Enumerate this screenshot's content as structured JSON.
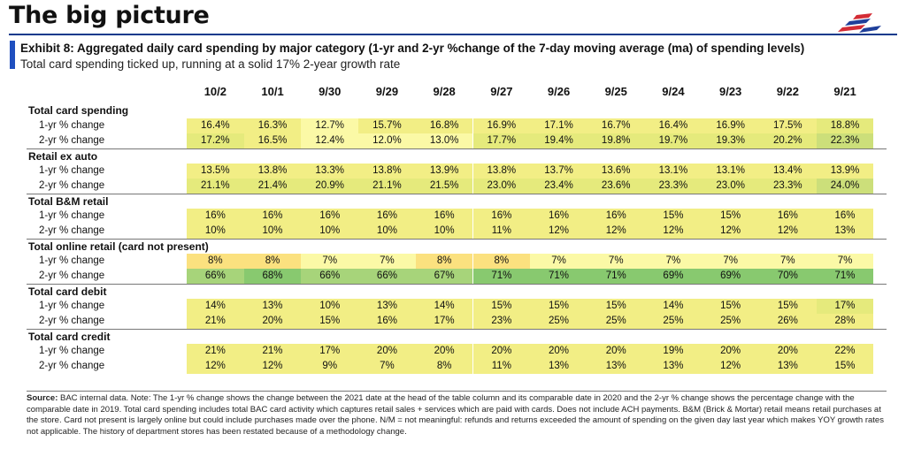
{
  "page_title": "The big picture",
  "exhibit": {
    "title": "Exhibit 8: Aggregated daily card spending by major category (1-yr and 2-yr %change of the 7-day moving average (ma) of spending levels)",
    "subtitle": "Total card spending ticked up, running at a solid 17% 2-year growth rate"
  },
  "columns": [
    "10/2",
    "10/1",
    "9/30",
    "9/29",
    "9/28",
    "9/27",
    "9/26",
    "9/25",
    "9/24",
    "9/23",
    "9/22",
    "9/21"
  ],
  "sections": [
    {
      "title": "Total card spending",
      "rows": [
        {
          "label": "1-yr % change",
          "values": [
            "16.4%",
            "16.3%",
            "12.7%",
            "15.7%",
            "16.8%",
            "16.9%",
            "17.1%",
            "16.7%",
            "16.4%",
            "16.9%",
            "17.5%",
            "18.8%"
          ]
        },
        {
          "label": "2-yr % change",
          "values": [
            "17.2%",
            "16.5%",
            "12.4%",
            "12.0%",
            "13.0%",
            "17.7%",
            "19.4%",
            "19.8%",
            "19.7%",
            "19.3%",
            "20.2%",
            "22.3%"
          ]
        }
      ]
    },
    {
      "title": "Retail ex auto",
      "rows": [
        {
          "label": "1-yr % change",
          "values": [
            "13.5%",
            "13.8%",
            "13.3%",
            "13.8%",
            "13.9%",
            "13.8%",
            "13.7%",
            "13.6%",
            "13.1%",
            "13.1%",
            "13.4%",
            "13.9%"
          ]
        },
        {
          "label": "2-yr % change",
          "values": [
            "21.1%",
            "21.4%",
            "20.9%",
            "21.1%",
            "21.5%",
            "23.0%",
            "23.4%",
            "23.6%",
            "23.3%",
            "23.0%",
            "23.3%",
            "24.0%"
          ]
        }
      ]
    },
    {
      "title": "Total B&M retail",
      "rows": [
        {
          "label": "1-yr % change",
          "values": [
            "16%",
            "16%",
            "16%",
            "16%",
            "16%",
            "16%",
            "16%",
            "16%",
            "15%",
            "15%",
            "16%",
            "16%"
          ]
        },
        {
          "label": "2-yr % change",
          "values": [
            "10%",
            "10%",
            "10%",
            "10%",
            "10%",
            "11%",
            "12%",
            "12%",
            "12%",
            "12%",
            "12%",
            "13%"
          ]
        }
      ]
    },
    {
      "title": "Total online retail (card not present)",
      "rows": [
        {
          "label": "1-yr % change",
          "values": [
            "8%",
            "8%",
            "7%",
            "7%",
            "8%",
            "8%",
            "7%",
            "7%",
            "7%",
            "7%",
            "7%",
            "7%"
          ]
        },
        {
          "label": "2-yr % change",
          "values": [
            "66%",
            "68%",
            "66%",
            "66%",
            "67%",
            "71%",
            "71%",
            "71%",
            "69%",
            "69%",
            "70%",
            "71%"
          ]
        }
      ]
    },
    {
      "title": "Total card debit",
      "rows": [
        {
          "label": "1-yr % change",
          "values": [
            "14%",
            "13%",
            "10%",
            "13%",
            "14%",
            "15%",
            "15%",
            "15%",
            "14%",
            "15%",
            "15%",
            "17%"
          ]
        },
        {
          "label": "2-yr % change",
          "values": [
            "21%",
            "20%",
            "15%",
            "16%",
            "17%",
            "23%",
            "25%",
            "25%",
            "25%",
            "25%",
            "26%",
            "28%"
          ]
        }
      ]
    },
    {
      "title": "Total card credit",
      "rows": [
        {
          "label": "1-yr % change",
          "values": [
            "21%",
            "21%",
            "17%",
            "20%",
            "20%",
            "20%",
            "20%",
            "20%",
            "19%",
            "20%",
            "20%",
            "22%"
          ]
        },
        {
          "label": "2-yr % change",
          "values": [
            "12%",
            "12%",
            "9%",
            "7%",
            "8%",
            "11%",
            "13%",
            "13%",
            "13%",
            "12%",
            "13%",
            "15%"
          ]
        }
      ]
    }
  ],
  "cell_colors": {
    "pale_yellow": "#fbf9a6",
    "yellow": "#f2ee85",
    "lime": "#e5ea7c",
    "light_green": "#ccdf7a",
    "green": "#a7d47a",
    "deep_green": "#88c96f",
    "orange_yellow": "#fbe17f"
  },
  "footnote": {
    "label": "Source:",
    "text": " BAC internal data. Note: The 1-yr % change shows the change between the 2021 date at the head of the table column and its comparable date in 2020 and the 2-yr % change shows the percentage change with the comparable date in 2019. Total card spending includes total BAC card activity which captures retail sales + services which are paid with cards. Does not include ACH payments. B&M (Brick & Mortar) retail means retail purchases at the store. Card not present is largely online but could include purchases made over the phone. N/M = not meaningful: refunds and returns exceeded the amount of spending on the given day last year which makes YOY growth rates not applicable. The history of department stores has been restated because of a methodology change."
  }
}
